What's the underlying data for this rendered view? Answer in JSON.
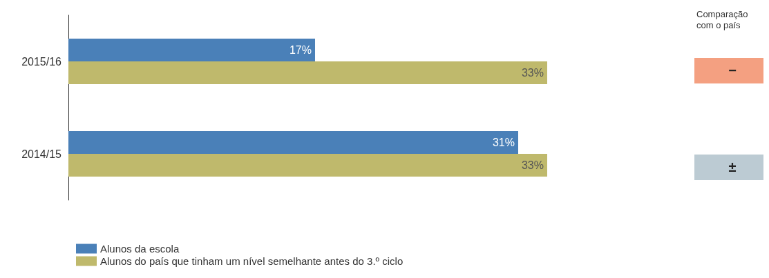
{
  "chart_data": {
    "type": "bar",
    "orientation": "horizontal",
    "categories": [
      "2015/16",
      "2014/15"
    ],
    "series": [
      {
        "name": "Alunos da escola",
        "color": "#4a80b8",
        "values": [
          17,
          31
        ],
        "value_labels": [
          "17%",
          "31%"
        ]
      },
      {
        "name": "Alunos do país que tinham um nível semelhante antes do 3.º ciclo",
        "color": "#bfb96c",
        "values": [
          33,
          33
        ],
        "value_labels": [
          "33%",
          "33%"
        ]
      }
    ],
    "legend": "bottom left",
    "tick_labels": "y",
    "annotations": [
      "Comparação\ncom o país",
      "−",
      "±"
    ]
  }
}
